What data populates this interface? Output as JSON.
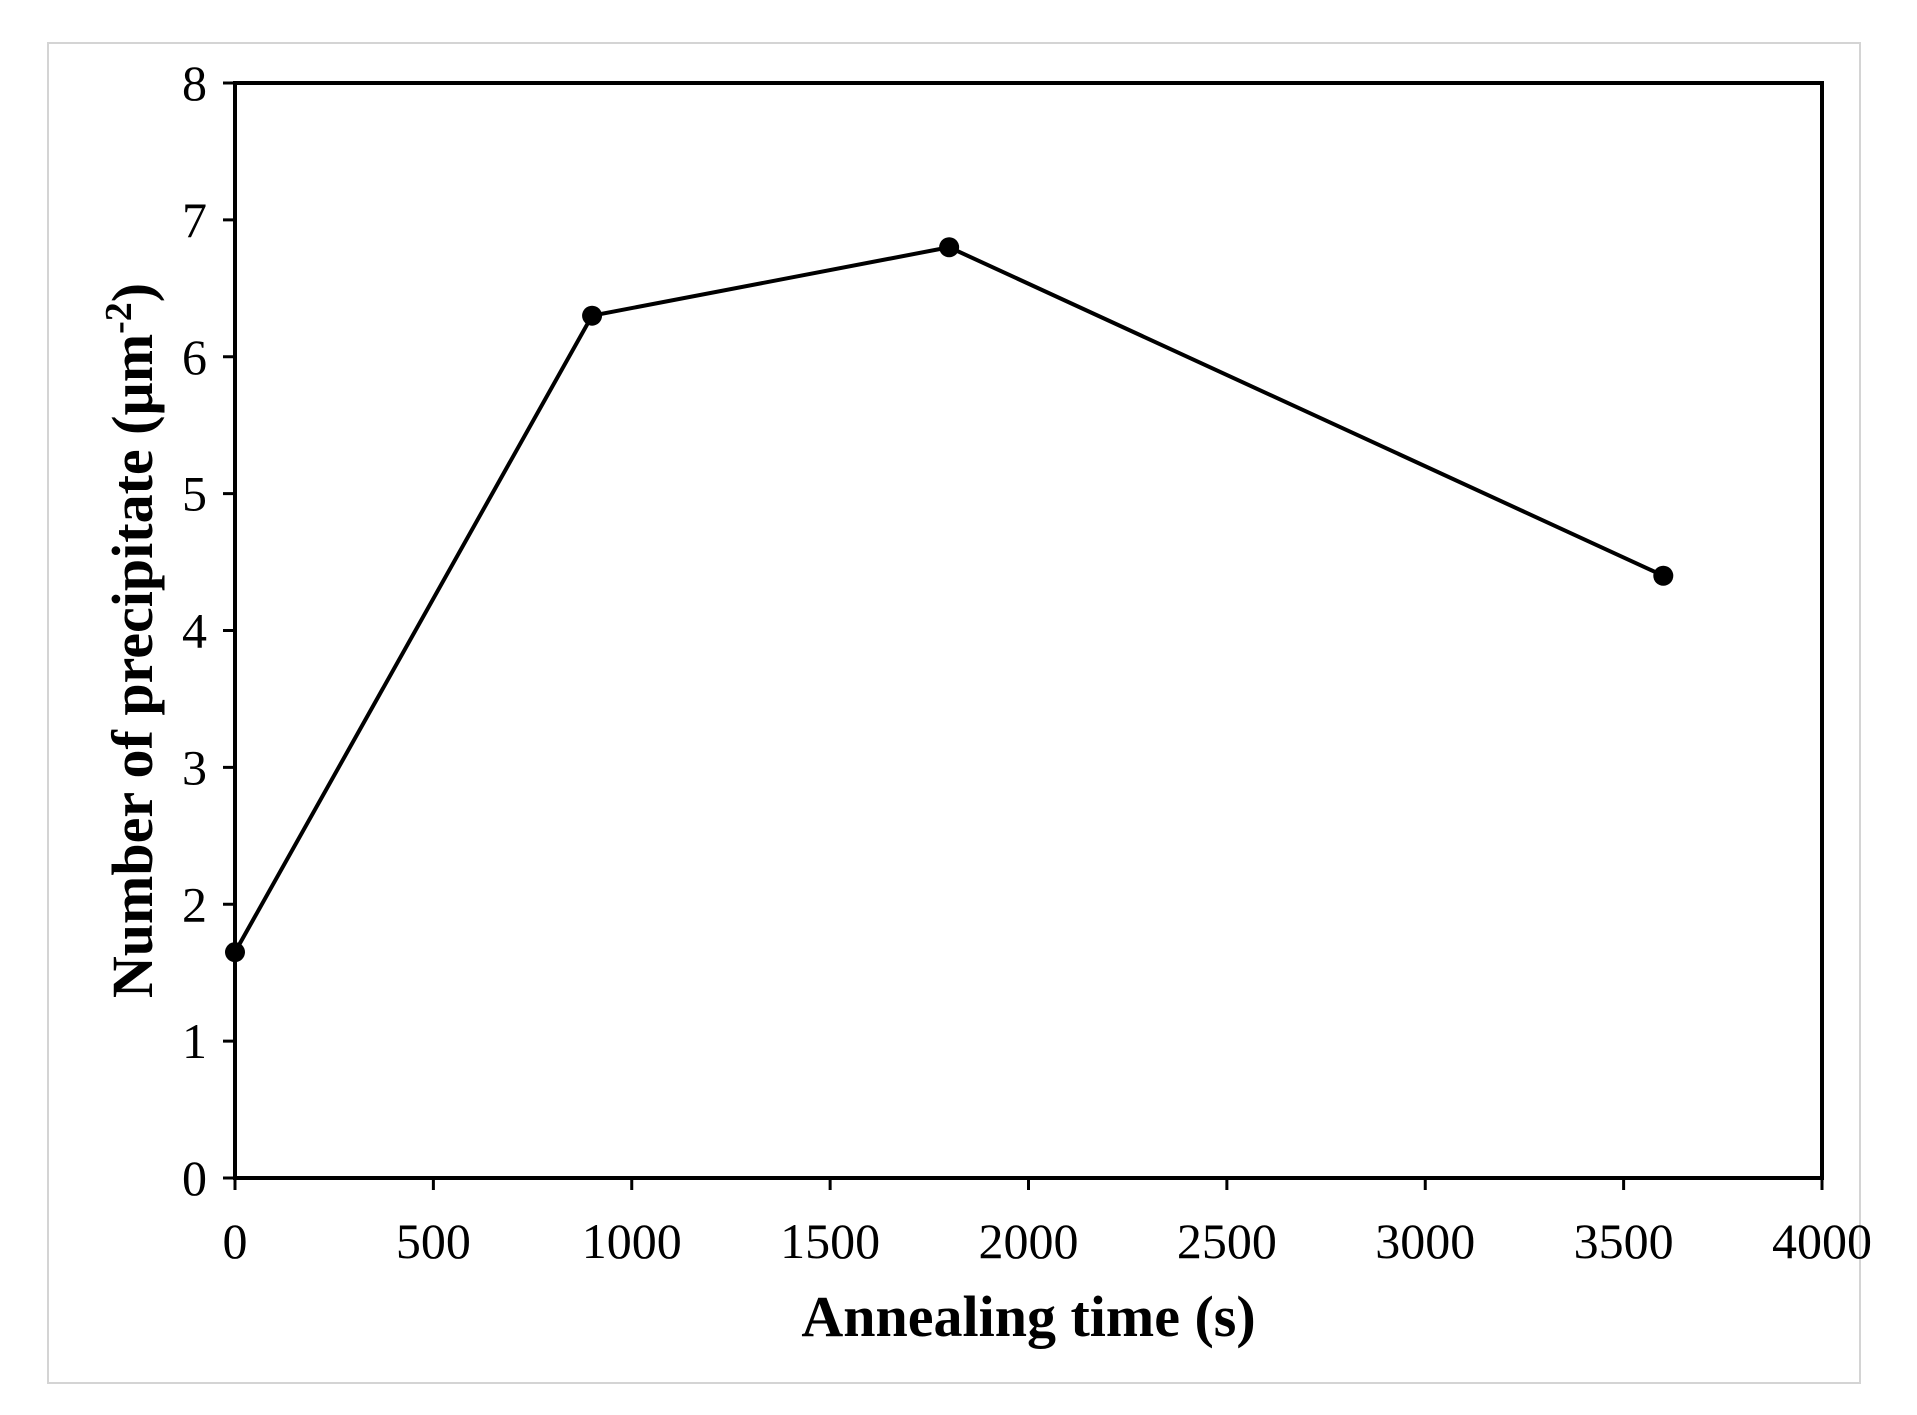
{
  "chart_data": {
    "type": "line",
    "title": "",
    "xlabel": "Annealing time (s)",
    "ylabel": {
      "prefix": "Number of precipitate (µm",
      "superscript": "-2",
      "suffix": ")"
    },
    "xlim": [
      0,
      4000
    ],
    "ylim": [
      0,
      8
    ],
    "xticks": [
      "0",
      "500",
      "1000",
      "1500",
      "2000",
      "2500",
      "3000",
      "3500",
      "4000"
    ],
    "yticks": [
      "0",
      "1",
      "2",
      "3",
      "4",
      "5",
      "6",
      "7",
      "8"
    ],
    "grid": false,
    "legend": "none",
    "series": [
      {
        "x": [
          0,
          900,
          1800,
          3600
        ],
        "y": [
          1.65,
          6.3,
          6.8,
          4.4
        ],
        "color": "#000000",
        "marker": "circle"
      }
    ]
  }
}
